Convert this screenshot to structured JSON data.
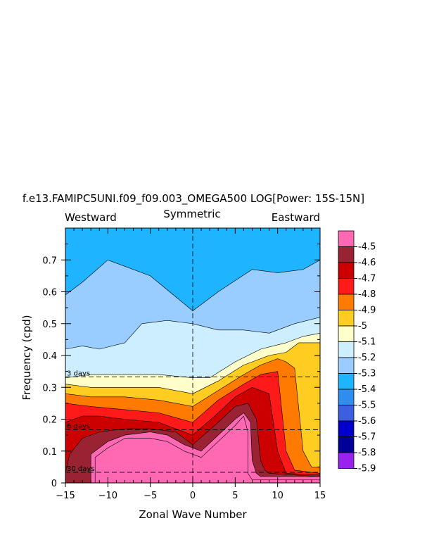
{
  "chart_data": {
    "type": "contour",
    "title": "f.e13.FAMIPC5UNI.f09_f09.003_OMEGA500 LOG[Power: 15S-15N]",
    "subtitle": "Symmetric",
    "left_label": "Westward",
    "right_label": "Eastward",
    "xlabel": "Zonal Wave Number",
    "ylabel": "Frequency (cpd)",
    "xlim": [
      -15,
      15
    ],
    "ylim": [
      0,
      0.8
    ],
    "x_ticks": [
      -15,
      -10,
      -5,
      0,
      5,
      10,
      15
    ],
    "y_ticks": [
      0,
      0.1,
      0.2,
      0.3,
      0.4,
      0.5,
      0.6,
      0.7
    ],
    "x_tick_labels": [
      "−15",
      "−10",
      "−5",
      "0",
      "5",
      "10",
      "15"
    ],
    "y_tick_labels": [
      "0",
      "0.1",
      "0.2",
      "0.3",
      "0.4",
      "0.5",
      "0.6",
      "0.7"
    ],
    "period_lines": [
      {
        "label": "3 days",
        "frequency": 0.333
      },
      {
        "label": "6 days",
        "frequency": 0.1667
      },
      {
        "label": "30 days",
        "frequency": 0.0333
      }
    ],
    "zero_wavenumber_line": 0,
    "colorbar": {
      "labels": [
        "-4.5",
        "-4.6",
        "-4.7",
        "-4.8",
        "-4.9",
        "-5",
        "-5.1",
        "-5.2",
        "-5.3",
        "-5.4",
        "-5.5",
        "-5.6",
        "-5.7",
        "-5.8",
        "-5.9"
      ],
      "colors": [
        "#ff69b4",
        "#992233",
        "#cc0000",
        "#ff1a1a",
        "#ff7a00",
        "#ffcc22",
        "#ffffcc",
        "#cceeff",
        "#99ccff",
        "#1eb4ff",
        "#2e8ef0",
        "#3c5fe0",
        "#0000cc",
        "#000099",
        "#9922ee"
      ]
    },
    "bands": [
      {
        "level": "-5.5",
        "color": "#1eb4ff",
        "upper": [
          [
            -15,
            0.8
          ],
          [
            15,
            0.8
          ]
        ]
      },
      {
        "level": "-5.4",
        "color": "#99ccff",
        "upper": [
          [
            -15,
            0.59
          ],
          [
            -13,
            0.63
          ],
          [
            -10,
            0.7
          ],
          [
            -5,
            0.65
          ],
          [
            0,
            0.54
          ],
          [
            3,
            0.6
          ],
          [
            7,
            0.67
          ],
          [
            10,
            0.66
          ],
          [
            13,
            0.67
          ],
          [
            15,
            0.7
          ]
        ]
      },
      {
        "level": "-5.3",
        "color": "#cceeff",
        "upper": [
          [
            -15,
            0.42
          ],
          [
            -13,
            0.43
          ],
          [
            -11,
            0.42
          ],
          [
            -8,
            0.44
          ],
          [
            -6,
            0.5
          ],
          [
            -3,
            0.51
          ],
          [
            0,
            0.5
          ],
          [
            3,
            0.48
          ],
          [
            6,
            0.48
          ],
          [
            9,
            0.47
          ],
          [
            12,
            0.5
          ],
          [
            15,
            0.52
          ]
        ]
      },
      {
        "level": "-5.2",
        "color": "#ffffcc",
        "upper": [
          [
            -15,
            0.33
          ],
          [
            -12,
            0.34
          ],
          [
            -8,
            0.34
          ],
          [
            -4,
            0.34
          ],
          [
            0,
            0.33
          ],
          [
            2,
            0.33
          ],
          [
            5,
            0.38
          ],
          [
            8,
            0.42
          ],
          [
            11,
            0.44
          ],
          [
            13,
            0.46
          ],
          [
            15,
            0.47
          ]
        ]
      },
      {
        "level": "-5.1",
        "color": "#ffcc22",
        "upper": [
          [
            -15,
            0.31
          ],
          [
            -12,
            0.3
          ],
          [
            -8,
            0.3
          ],
          [
            -4,
            0.3
          ],
          [
            0,
            0.28
          ],
          [
            3,
            0.32
          ],
          [
            6,
            0.37
          ],
          [
            9,
            0.4
          ],
          [
            11,
            0.41
          ],
          [
            12.5,
            0.44
          ],
          [
            15,
            0.44
          ]
        ]
      },
      {
        "level": "-5",
        "color": "#ff7a00",
        "upper": [
          [
            -15,
            0.28
          ],
          [
            -12,
            0.27
          ],
          [
            -8,
            0.27
          ],
          [
            -4,
            0.26
          ],
          [
            0,
            0.24
          ],
          [
            3,
            0.29
          ],
          [
            6,
            0.34
          ],
          [
            8,
            0.37
          ],
          [
            10,
            0.39
          ],
          [
            11,
            0.38
          ],
          [
            12,
            0.36
          ],
          [
            13,
            0.1
          ],
          [
            14,
            0.05
          ],
          [
            15,
            0.05
          ]
        ]
      },
      {
        "level": "-4.9",
        "color": "#ff1a1a",
        "upper": [
          [
            -15,
            0.25
          ],
          [
            -12,
            0.24
          ],
          [
            -8,
            0.23
          ],
          [
            -4,
            0.22
          ],
          [
            0,
            0.19
          ],
          [
            3,
            0.26
          ],
          [
            6,
            0.31
          ],
          [
            8,
            0.34
          ],
          [
            10,
            0.35
          ],
          [
            11,
            0.1
          ],
          [
            12,
            0.04
          ],
          [
            15,
            0.03
          ]
        ]
      },
      {
        "level": "-4.8",
        "color": "#cc0000",
        "upper": [
          [
            -15,
            0.19
          ],
          [
            -13,
            0.21
          ],
          [
            -11,
            0.21
          ],
          [
            -8,
            0.2
          ],
          [
            -4,
            0.19
          ],
          [
            0,
            0.15
          ],
          [
            3,
            0.22
          ],
          [
            5,
            0.27
          ],
          [
            7,
            0.3
          ],
          [
            9,
            0.28
          ],
          [
            10,
            0.1
          ],
          [
            11,
            0.03
          ],
          [
            15,
            0.025
          ]
        ]
      },
      {
        "level": "-4.7",
        "color": "#992233",
        "upper": [
          [
            -15,
            0.03
          ],
          [
            -14.5,
            0.09
          ],
          [
            -13,
            0.14
          ],
          [
            -11,
            0.16
          ],
          [
            -8,
            0.17
          ],
          [
            -5,
            0.17
          ],
          [
            -2,
            0.16
          ],
          [
            0,
            0.12
          ],
          [
            3,
            0.19
          ],
          [
            5,
            0.24
          ],
          [
            6.5,
            0.25
          ],
          [
            7.5,
            0.2
          ],
          [
            8,
            0.07
          ],
          [
            8.5,
            0.04
          ],
          [
            9,
            0.03
          ],
          [
            15,
            0.02
          ]
        ]
      },
      {
        "level": "-4.6",
        "color": "#ff69b4",
        "upper": [
          [
            -15,
            0.0
          ],
          [
            -12,
            0.0
          ],
          [
            -12,
            0.09
          ],
          [
            -10,
            0.13
          ],
          [
            -8,
            0.15
          ],
          [
            -5,
            0.16
          ],
          [
            -3,
            0.15
          ],
          [
            -1,
            0.12
          ],
          [
            1,
            0.1
          ],
          [
            3,
            0.15
          ],
          [
            5,
            0.2
          ],
          [
            6,
            0.22
          ],
          [
            6.8,
            0.19
          ],
          [
            7,
            0.07
          ],
          [
            7.5,
            0.03
          ],
          [
            8,
            0.02
          ],
          [
            15,
            0.02
          ]
        ]
      },
      {
        "level": "-4.5",
        "color": "#ff69b4",
        "upper": [
          [
            -15,
            0.0
          ],
          [
            -11.5,
            0.0
          ],
          [
            -11.5,
            0.08
          ],
          [
            -10,
            0.11
          ],
          [
            -8,
            0.14
          ],
          [
            -5,
            0.14
          ],
          [
            -3,
            0.13
          ],
          [
            -1,
            0.1
          ],
          [
            1,
            0.08
          ],
          [
            3,
            0.13
          ],
          [
            5,
            0.18
          ],
          [
            6,
            0.21
          ],
          [
            6.5,
            0.16
          ],
          [
            6.5,
            0.03
          ],
          [
            7,
            0.01
          ],
          [
            15,
            0.01
          ]
        ]
      }
    ]
  }
}
